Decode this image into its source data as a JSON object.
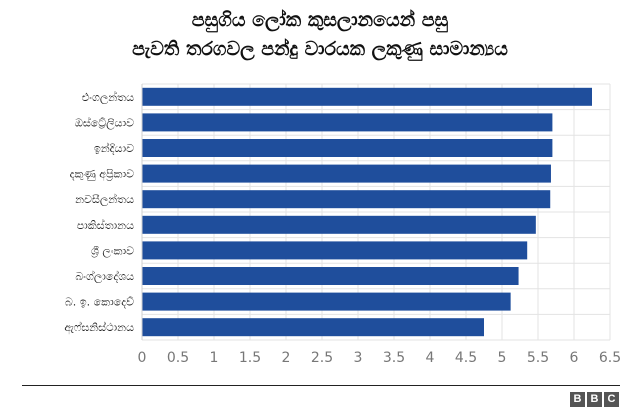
{
  "title_line1": "පසුගිය ලෝක කුසලානයෙන් පසු",
  "title_line2": "පැවති තරගවල පන්දු වාරයක ලකුණු සාමාන්‍යය",
  "logo": [
    "B",
    "B",
    "C"
  ],
  "chart_data": {
    "type": "bar",
    "orientation": "horizontal",
    "categories": [
      "එංගලන්තය",
      "ඔස්ට්‍රේලියාව",
      "ඉන්දියාව",
      "දකුණු අප්‍රිකාව",
      "නවසීලන්තය",
      "පාකිස්තානය",
      "ශ්‍රී ලංකාව",
      "බංග්ලාදේශය",
      "බ. ඉ. කොදෙව්",
      "ඇෆ්ඝනිස්ථානය"
    ],
    "values": [
      6.25,
      5.7,
      5.7,
      5.68,
      5.67,
      5.47,
      5.35,
      5.23,
      5.12,
      4.75
    ],
    "xlim": [
      0,
      6.5
    ],
    "xticks": [
      "0",
      "0.5",
      "1",
      "1.5",
      "2",
      "2.5",
      "3",
      "3.5",
      "4",
      "4.5",
      "5",
      "5.5",
      "6",
      "6.5"
    ],
    "bar_color": "#1f4e9c",
    "grid": true
  }
}
